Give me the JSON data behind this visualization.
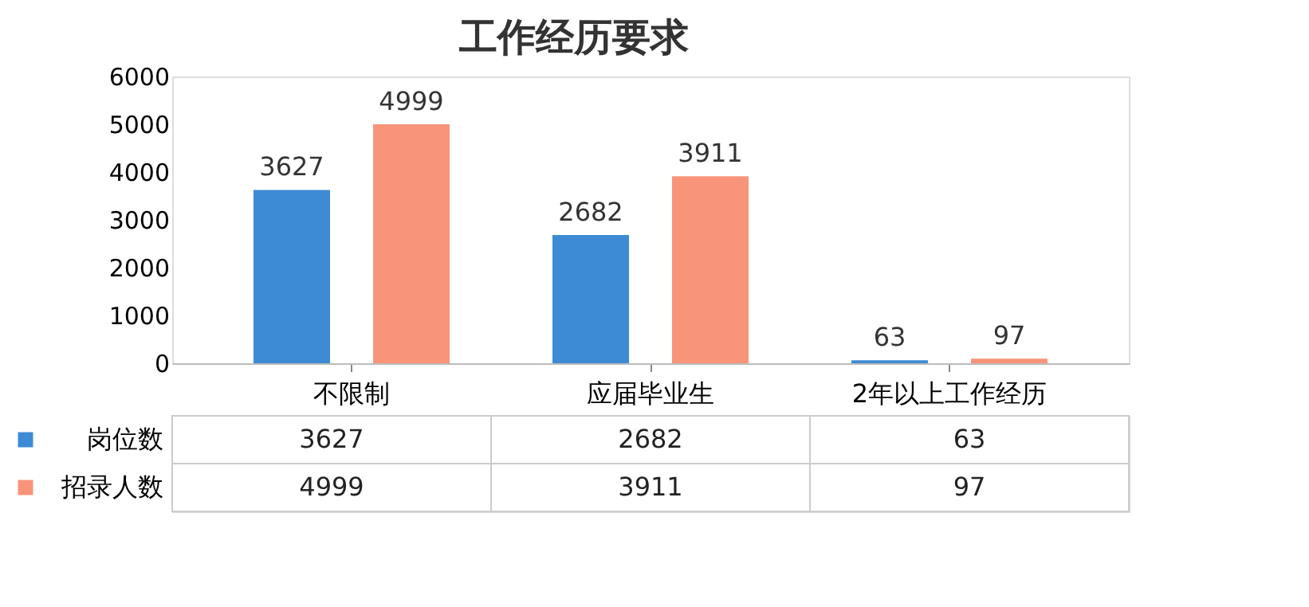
{
  "chart_data": {
    "type": "bar",
    "title": "工作经历要求",
    "categories": [
      "不限制",
      "应届毕业生",
      "2年以上工作经历"
    ],
    "series": [
      {
        "name": "岗位数",
        "color": "#3d8bd4",
        "values": [
          3627,
          2682,
          63
        ],
        "value_labels": [
          "3627",
          "2682",
          "63"
        ]
      },
      {
        "name": "招录人数",
        "color": "#f7947a",
        "values": [
          4999,
          3911,
          97
        ],
        "value_labels": [
          "4999",
          "3911",
          "97"
        ]
      }
    ],
    "ylim": [
      0,
      6000
    ],
    "yticks": [
      0,
      1000,
      2000,
      3000,
      4000,
      5000,
      6000
    ],
    "grid": false,
    "legend": "bottom left"
  }
}
